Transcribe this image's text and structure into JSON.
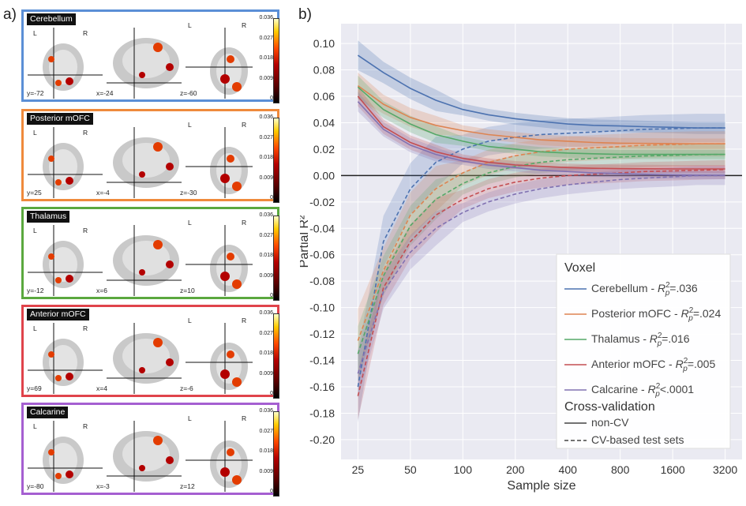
{
  "panel_a_letter": "a)",
  "panel_b_letter": "b)",
  "brain_panels": [
    {
      "title": "Cerebellum",
      "color": "#5b8fd6",
      "slice_labels": [
        "y=-72",
        "x=-24",
        "z=-60"
      ],
      "ticks": [
        "0.036",
        "0.027",
        "0.018",
        "0.009",
        "0"
      ],
      "lr": [
        "L",
        "R",
        "L",
        "R"
      ]
    },
    {
      "title": "Posterior mOFC",
      "color": "#ef8a3c",
      "slice_labels": [
        "y=25",
        "x=-4",
        "z=-30"
      ],
      "ticks": [
        "0.036",
        "0.027",
        "0.018",
        "0.009",
        "0"
      ],
      "lr": [
        "L",
        "R",
        "L",
        "R"
      ]
    },
    {
      "title": "Thalamus",
      "color": "#5aa83e",
      "slice_labels": [
        "y=-12",
        "x=6",
        "z=10"
      ],
      "ticks": [
        "0.036",
        "0.027",
        "0.018",
        "0.009",
        "0"
      ],
      "lr": [
        "L",
        "R",
        "L",
        "R"
      ]
    },
    {
      "title": "Anterior mOFC",
      "color": "#e0434b",
      "slice_labels": [
        "y=69",
        "x=4",
        "z=-6"
      ],
      "ticks": [
        "0.036",
        "0.027",
        "0.018",
        "0.009",
        "0"
      ],
      "lr": [
        "L",
        "R",
        "L",
        "R"
      ]
    },
    {
      "title": "Calcarine",
      "color": "#a55fd1",
      "slice_labels": [
        "y=-80",
        "x=-3",
        "z=12"
      ],
      "ticks": [
        "0.036",
        "0.027",
        "0.018",
        "0.009",
        "0"
      ],
      "lr": [
        "L",
        "R",
        "L",
        "R"
      ]
    }
  ],
  "chart_data": {
    "type": "line",
    "xlabel": "Sample size",
    "ylabel": "Partial R²",
    "x_scale": "log",
    "x": [
      25,
      35,
      50,
      70,
      100,
      140,
      200,
      280,
      400,
      560,
      800,
      1100,
      1600,
      2200,
      3200
    ],
    "x_ticks": [
      "25",
      "50",
      "100",
      "200",
      "400",
      "800",
      "1600",
      "3200"
    ],
    "x_tick_values": [
      25,
      50,
      100,
      200,
      400,
      800,
      1600,
      3200
    ],
    "ylim": [
      -0.215,
      0.115
    ],
    "y_ticks": [
      "0.10",
      "0.08",
      "0.06",
      "0.04",
      "0.02",
      "0.00",
      "-0.02",
      "-0.04",
      "-0.06",
      "-0.08",
      "-0.10",
      "-0.12",
      "-0.14",
      "-0.16",
      "-0.18",
      "-0.20"
    ],
    "y_tick_values": [
      0.1,
      0.08,
      0.06,
      0.04,
      0.02,
      0.0,
      -0.02,
      -0.04,
      -0.06,
      -0.08,
      -0.1,
      -0.12,
      -0.14,
      -0.16,
      -0.18,
      -0.2
    ],
    "grid": true,
    "legend_position": "bottom-right",
    "legend_title_voxel": "Voxel",
    "legend_title_cv": "Cross-validation",
    "legend_cv_entries": [
      "non-CV",
      "CV-based test sets"
    ],
    "series": [
      {
        "name": "Cerebellum",
        "r2": ".036",
        "r2_prefix": "=",
        "color": "#4c72b0",
        "non_cv": [
          0.091,
          0.078,
          0.066,
          0.057,
          0.05,
          0.046,
          0.043,
          0.041,
          0.039,
          0.038,
          0.0375,
          0.037,
          0.0365,
          0.036,
          0.036
        ],
        "cv": [
          -0.16,
          -0.05,
          -0.01,
          0.01,
          0.02,
          0.026,
          0.029,
          0.031,
          0.032,
          0.033,
          0.034,
          0.035,
          0.0355,
          0.036,
          0.036
        ],
        "band": 0.009
      },
      {
        "name": "Posterior mOFC",
        "r2": ".024",
        "r2_prefix": "=",
        "color": "#dd8452",
        "non_cv": [
          0.068,
          0.054,
          0.044,
          0.038,
          0.034,
          0.031,
          0.029,
          0.027,
          0.026,
          0.025,
          0.0245,
          0.0243,
          0.0242,
          0.024,
          0.024
        ],
        "cv": [
          -0.125,
          -0.072,
          -0.03,
          -0.01,
          0.002,
          0.01,
          0.015,
          0.018,
          0.02,
          0.021,
          0.022,
          0.023,
          0.0235,
          0.024,
          0.024
        ],
        "band": 0.008
      },
      {
        "name": "Thalamus",
        "r2": ".016",
        "r2_prefix": "=",
        "color": "#55a868",
        "non_cv": [
          0.067,
          0.05,
          0.039,
          0.031,
          0.026,
          0.022,
          0.02,
          0.018,
          0.017,
          0.0165,
          0.016,
          0.016,
          0.016,
          0.016,
          0.016
        ],
        "cv": [
          -0.135,
          -0.076,
          -0.038,
          -0.018,
          -0.006,
          0.002,
          0.007,
          0.01,
          0.012,
          0.013,
          0.014,
          0.0148,
          0.0153,
          0.0158,
          0.016
        ],
        "band": 0.007
      },
      {
        "name": "Anterior mOFC",
        "r2": ".005",
        "r2_prefix": "=",
        "color": "#c44e52",
        "non_cv": [
          0.06,
          0.037,
          0.025,
          0.018,
          0.013,
          0.01,
          0.008,
          0.007,
          0.006,
          0.0055,
          0.0052,
          0.0051,
          0.005,
          0.005,
          0.005
        ],
        "cv": [
          -0.167,
          -0.085,
          -0.05,
          -0.03,
          -0.018,
          -0.01,
          -0.005,
          -0.002,
          0.0,
          0.001,
          0.002,
          0.003,
          0.0035,
          0.004,
          0.0045
        ],
        "band": 0.006
      },
      {
        "name": "Calcarine",
        "r2": ".0001",
        "r2_prefix": "<",
        "color": "#8172b2",
        "non_cv": [
          0.056,
          0.035,
          0.023,
          0.016,
          0.011,
          0.008,
          0.006,
          0.004,
          0.003,
          0.002,
          0.0015,
          0.001,
          0.0005,
          0.0003,
          0.0002
        ],
        "cv": [
          -0.15,
          -0.088,
          -0.058,
          -0.04,
          -0.028,
          -0.02,
          -0.014,
          -0.01,
          -0.007,
          -0.005,
          -0.003,
          -0.002,
          -0.001,
          0.0,
          0.0
        ],
        "band": 0.006
      }
    ]
  }
}
